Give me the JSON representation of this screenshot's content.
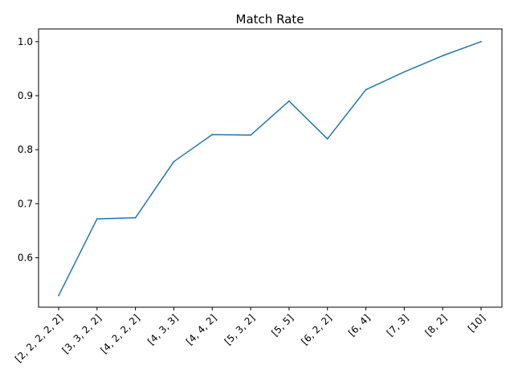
{
  "chart_data": {
    "type": "line",
    "title": "Match Rate",
    "xlabel": "",
    "ylabel": "",
    "categories": [
      "[2, 2, 2, 2, 2]",
      "[3, 3, 2, 2]",
      "[4, 2, 2, 2]",
      "[4, 3, 3]",
      "[4, 4, 2]",
      "[5, 3, 2]",
      "[5, 5]",
      "[6, 2, 2]",
      "[6, 4]",
      "[7, 3]",
      "[8, 2]",
      "[10]"
    ],
    "series": [
      {
        "color": "#1f77b4",
        "values": [
          0.53,
          0.672,
          0.674,
          0.778,
          0.828,
          0.827,
          0.89,
          0.82,
          0.911,
          0.944,
          0.974,
          1.0
        ]
      }
    ],
    "ylim": [
      0.5085,
      1.0235
    ],
    "yticks": [
      0.6,
      0.7,
      0.8,
      0.9,
      1.0
    ],
    "ytick_labels": [
      "0.6",
      "0.7",
      "0.8",
      "0.9",
      "1.0"
    ],
    "grid": false,
    "legend": "none"
  }
}
